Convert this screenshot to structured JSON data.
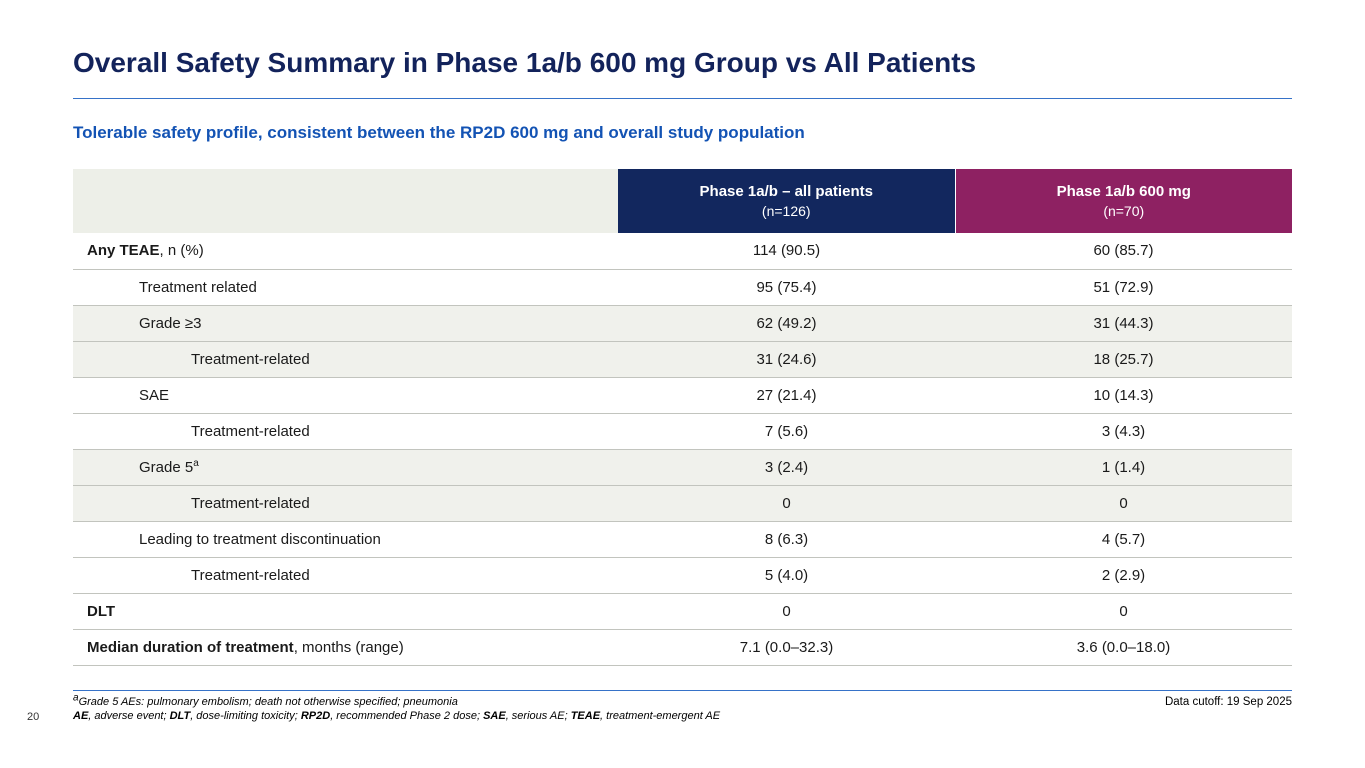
{
  "slide": {
    "title": "Overall Safety Summary in Phase 1a/b 600 mg Group vs All Patients",
    "subtitle": "Tolerable safety profile, consistent between the RP2D 600 mg and overall study population",
    "page_number": "20",
    "data_cutoff": "Data cutoff: 19 Sep 2025"
  },
  "colors": {
    "title_color": "#13235b",
    "subtitle_color": "#1353b4",
    "accent_line": "#3672c8",
    "header_all_patients_bg": "#12275e",
    "header_600mg_bg": "#8e2162",
    "header_empty_bg": "#edefe8",
    "row_shaded_bg": "#f0f1ec",
    "divider_color": "#c2c4be"
  },
  "table": {
    "columns": [
      {
        "label_line1": "Phase 1a/b – all patients",
        "label_line2": "(n=126)"
      },
      {
        "label_line1": "Phase 1a/b 600 mg",
        "label_line2": "(n=70)"
      }
    ],
    "rows": [
      {
        "label_bold": "Any TEAE",
        "label_rest": ", n (%)",
        "label_sup": "",
        "indent": 0,
        "shaded": false,
        "values": [
          "114 (90.5)",
          "60 (85.7)"
        ]
      },
      {
        "label_bold": "",
        "label_rest": "Treatment related",
        "label_sup": "",
        "indent": 1,
        "shaded": false,
        "values": [
          "95 (75.4)",
          "51 (72.9)"
        ]
      },
      {
        "label_bold": "",
        "label_rest": "Grade ≥3",
        "label_sup": "",
        "indent": 1,
        "shaded": true,
        "values": [
          "62 (49.2)",
          "31 (44.3)"
        ]
      },
      {
        "label_bold": "",
        "label_rest": "Treatment-related",
        "label_sup": "",
        "indent": 2,
        "shaded": true,
        "values": [
          "31 (24.6)",
          "18 (25.7)"
        ]
      },
      {
        "label_bold": "",
        "label_rest": "SAE",
        "label_sup": "",
        "indent": 1,
        "shaded": false,
        "values": [
          "27 (21.4)",
          "10 (14.3)"
        ]
      },
      {
        "label_bold": "",
        "label_rest": "Treatment-related",
        "label_sup": "",
        "indent": 2,
        "shaded": false,
        "values": [
          "7 (5.6)",
          "3 (4.3)"
        ]
      },
      {
        "label_bold": "",
        "label_rest": "Grade 5",
        "label_sup": "a",
        "indent": 1,
        "shaded": true,
        "values": [
          "3 (2.4)",
          "1 (1.4)"
        ]
      },
      {
        "label_bold": "",
        "label_rest": "Treatment-related",
        "label_sup": "",
        "indent": 2,
        "shaded": true,
        "values": [
          "0",
          "0"
        ]
      },
      {
        "label_bold": "",
        "label_rest": "Leading to treatment discontinuation",
        "label_sup": "",
        "indent": 1,
        "shaded": false,
        "values": [
          "8 (6.3)",
          "4 (5.7)"
        ]
      },
      {
        "label_bold": "",
        "label_rest": "Treatment-related",
        "label_sup": "",
        "indent": 2,
        "shaded": false,
        "values": [
          "5 (4.0)",
          "2 (2.9)"
        ]
      },
      {
        "label_bold": "DLT",
        "label_rest": "",
        "label_sup": "",
        "indent": 0,
        "shaded": false,
        "values": [
          "0",
          "0"
        ]
      },
      {
        "label_bold": "Median duration of treatment",
        "label_rest": ", months (range)",
        "label_sup": "",
        "indent": 0,
        "shaded": false,
        "values": [
          "7.1 (0.0–32.3)",
          "3.6 (0.0–18.0)"
        ]
      }
    ]
  },
  "footnotes": {
    "line1_sup": "a",
    "line1": "Grade 5 AEs: pulmonary embolism; death not otherwise specified; pneumonia",
    "line2_parts": [
      {
        "bold": true,
        "text": "AE"
      },
      {
        "bold": false,
        "text": ", adverse event; "
      },
      {
        "bold": true,
        "text": "DLT"
      },
      {
        "bold": false,
        "text": ", dose-limiting toxicity; "
      },
      {
        "bold": true,
        "text": "RP2D"
      },
      {
        "bold": false,
        "text": ", recommended Phase 2 dose; "
      },
      {
        "bold": true,
        "text": "SAE"
      },
      {
        "bold": false,
        "text": ", serious AE; "
      },
      {
        "bold": true,
        "text": "TEAE"
      },
      {
        "bold": false,
        "text": ", treatment-emergent AE"
      }
    ]
  }
}
